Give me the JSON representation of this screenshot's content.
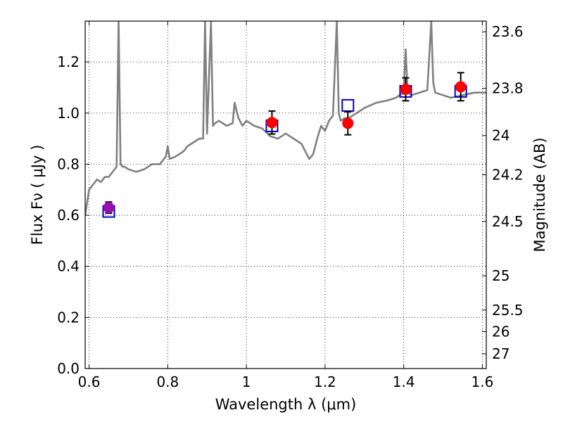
{
  "chart_data": {
    "type": "scatter",
    "xlabel": "Wavelength  λ (μm)",
    "ylabel": "Flux  Fν  ( μJy )",
    "ylabel_right": "Magnitude (AB)",
    "xlim": [
      0.59,
      1.61
    ],
    "ylim": [
      0.0,
      1.36
    ],
    "grid": true,
    "x_ticks": [
      {
        "value": 0.6,
        "label": "0.6"
      },
      {
        "value": 0.8,
        "label": "0.8"
      },
      {
        "value": 1.0,
        "label": "1"
      },
      {
        "value": 1.2,
        "label": "1.2"
      },
      {
        "value": 1.4,
        "label": "1.4"
      },
      {
        "value": 1.6,
        "label": "1.6"
      }
    ],
    "y_ticks": [
      {
        "value": 0.0,
        "label": "0.0"
      },
      {
        "value": 0.2,
        "label": "0.2"
      },
      {
        "value": 0.4,
        "label": "0.4"
      },
      {
        "value": 0.6,
        "label": "0.6"
      },
      {
        "value": 0.8,
        "label": "0.8"
      },
      {
        "value": 1.0,
        "label": "1.0"
      },
      {
        "value": 1.2,
        "label": "1.2"
      }
    ],
    "right_ticks": [
      {
        "value": 23.6,
        "label": "23.6"
      },
      {
        "value": 23.8,
        "label": "23.8"
      },
      {
        "value": 24.0,
        "label": "24"
      },
      {
        "value": 24.2,
        "label": "24.2"
      },
      {
        "value": 24.5,
        "label": "24.5"
      },
      {
        "value": 25.0,
        "label": "25"
      },
      {
        "value": 25.5,
        "label": "25.5"
      },
      {
        "value": 26.0,
        "label": "26"
      },
      {
        "value": 27.0,
        "label": "27"
      }
    ],
    "series": [
      {
        "kind": "model_spectrum",
        "color": "#808080",
        "x": [
          0.59,
          0.6,
          0.61,
          0.62,
          0.63,
          0.64,
          0.65,
          0.66,
          0.67,
          0.675,
          0.68,
          0.685,
          0.69,
          0.7,
          0.72,
          0.74,
          0.76,
          0.78,
          0.795,
          0.8,
          0.805,
          0.82,
          0.84,
          0.85,
          0.86,
          0.88,
          0.89,
          0.895,
          0.9,
          0.91,
          0.915,
          0.92,
          0.93,
          0.95,
          0.965,
          0.97,
          0.98,
          0.99,
          1.0,
          1.02,
          1.04,
          1.06,
          1.08,
          1.1,
          1.12,
          1.14,
          1.15,
          1.16,
          1.17,
          1.18,
          1.19,
          1.2,
          1.21,
          1.22,
          1.23,
          1.235,
          1.24,
          1.25,
          1.26,
          1.28,
          1.3,
          1.33,
          1.36,
          1.38,
          1.4,
          1.405,
          1.41,
          1.42,
          1.44,
          1.46,
          1.47,
          1.475,
          1.48,
          1.5,
          1.52,
          1.55,
          1.58,
          1.61
        ],
        "y": [
          0.6,
          0.7,
          0.72,
          0.74,
          0.73,
          0.75,
          0.75,
          0.77,
          0.79,
          1.36,
          0.8,
          0.79,
          0.79,
          0.78,
          0.77,
          0.78,
          0.8,
          0.8,
          0.83,
          0.87,
          0.82,
          0.83,
          0.85,
          0.87,
          0.88,
          0.9,
          0.9,
          1.36,
          0.92,
          1.36,
          0.95,
          0.96,
          0.97,
          0.95,
          0.96,
          1.04,
          0.98,
          0.95,
          0.97,
          0.95,
          0.94,
          0.91,
          0.9,
          0.92,
          0.9,
          0.88,
          0.85,
          0.82,
          0.84,
          0.9,
          0.95,
          0.93,
          0.97,
          0.99,
          1.36,
          1.0,
          0.97,
          0.98,
          0.98,
          1.0,
          1.02,
          1.04,
          1.05,
          1.06,
          1.08,
          1.25,
          1.08,
          1.07,
          1.08,
          1.09,
          1.36,
          1.12,
          1.08,
          1.07,
          1.06,
          1.07,
          1.08,
          1.08
        ]
      },
      {
        "kind": "model_photometry",
        "marker": "open-square",
        "color": "#0000cc",
        "x": [
          0.65,
          1.065,
          1.258,
          1.405,
          1.545
        ],
        "y": [
          0.615,
          0.95,
          1.03,
          1.085,
          1.085
        ]
      },
      {
        "kind": "observed_photometry",
        "marker": "filled-circle",
        "points": [
          {
            "x": 0.65,
            "y": 0.63,
            "err": 0.022,
            "color": "#9a0fb0"
          },
          {
            "x": 1.065,
            "y": 0.963,
            "err": 0.045,
            "color": "#ff0000"
          },
          {
            "x": 1.258,
            "y": 0.96,
            "err": 0.045,
            "color": "#ff0000"
          },
          {
            "x": 1.405,
            "y": 1.093,
            "err": 0.045,
            "color": "#ff0000"
          },
          {
            "x": 1.545,
            "y": 1.103,
            "err": 0.055,
            "color": "#ff0000"
          }
        ]
      }
    ]
  }
}
